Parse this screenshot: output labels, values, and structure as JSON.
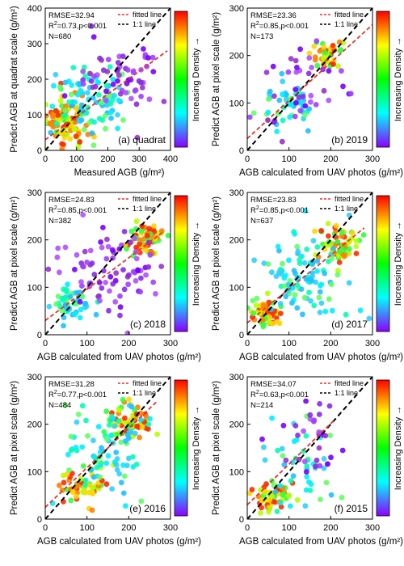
{
  "chart_data": [
    {
      "type": "scatter",
      "panel_label": "(a) quadrat",
      "stats": {
        "rmse": "RMSE=32.94",
        "r2_prefix": "R",
        "r2_rest": "=0.73,p<0.001",
        "n": "N=680"
      },
      "legend": {
        "fitted": "fitted line",
        "one_to_one": "1:1 line"
      },
      "colorbar_label": "Increasing Density →",
      "xlabel": "Measured AGB (g/m²)",
      "ylabel": "Predict AGB at quadrat scale (g/m²)",
      "xlim": [
        0,
        400
      ],
      "ylim": [
        0,
        400
      ],
      "xticks": [
        0,
        100,
        200,
        300,
        400
      ],
      "yticks": [
        0,
        100,
        200,
        300,
        400
      ],
      "fit": [
        [
          0,
          30
        ],
        [
          390,
          280
        ]
      ],
      "clusters": [
        {
          "cx": 60,
          "cy": 80,
          "sx": 35,
          "sy": 35,
          "n": 110,
          "seed": 1,
          "d": "high"
        },
        {
          "cx": 150,
          "cy": 140,
          "sx": 60,
          "sy": 50,
          "n": 90,
          "seed": 2,
          "d": "mid"
        },
        {
          "cx": 250,
          "cy": 200,
          "sx": 70,
          "sy": 55,
          "n": 60,
          "seed": 3,
          "d": "low"
        }
      ]
    },
    {
      "type": "scatter",
      "panel_label": "(b) 2019",
      "stats": {
        "rmse": "RMSE=23.36",
        "r2_prefix": "R",
        "r2_rest": "=0.85,p<0.001",
        "n": "N=173"
      },
      "legend": {
        "fitted": "fitted line",
        "one_to_one": "1:1 line"
      },
      "colorbar_label": "Increasing Density →",
      "xlabel": "AGB calculated from UAV photos (g/m²)",
      "ylabel": "Predict AGB at pixel scale (g/m²)",
      "xlim": [
        0,
        300
      ],
      "ylim": [
        0,
        300
      ],
      "xticks": [
        0,
        100,
        200,
        300
      ],
      "yticks": [
        0,
        100,
        200,
        300
      ],
      "fit": [
        [
          0,
          25
        ],
        [
          300,
          265
        ]
      ],
      "clusters": [
        {
          "cx": 190,
          "cy": 200,
          "sx": 18,
          "sy": 16,
          "n": 45,
          "seed": 11,
          "d": "high"
        },
        {
          "cx": 90,
          "cy": 100,
          "sx": 30,
          "sy": 25,
          "n": 50,
          "seed": 12,
          "d": "mid"
        },
        {
          "cx": 140,
          "cy": 140,
          "sx": 60,
          "sy": 50,
          "n": 40,
          "seed": 13,
          "d": "low"
        }
      ]
    },
    {
      "type": "scatter",
      "panel_label": "(c) 2018",
      "stats": {
        "rmse": "RMSE=24.83",
        "r2_prefix": "R",
        "r2_rest": "=0.85,p<0.001",
        "n": "N=382"
      },
      "legend": {
        "fitted": "fitted line",
        "one_to_one": "1:1 line"
      },
      "colorbar_label": "Increasing Density →",
      "xlabel": "AGB calculated from UAV photos (g/m²)",
      "ylabel": "Predict AGB at pixel scale (g/m²)",
      "xlim": [
        0,
        300
      ],
      "ylim": [
        0,
        300
      ],
      "xticks": [
        0,
        100,
        200,
        300
      ],
      "yticks": [
        0,
        100,
        200,
        300
      ],
      "fit": [
        [
          0,
          30
        ],
        [
          280,
          215
        ]
      ],
      "clusters": [
        {
          "cx": 240,
          "cy": 200,
          "sx": 22,
          "sy": 18,
          "n": 60,
          "seed": 21,
          "d": "high"
        },
        {
          "cx": 60,
          "cy": 65,
          "sx": 25,
          "sy": 20,
          "n": 55,
          "seed": 22,
          "d": "mid"
        },
        {
          "cx": 150,
          "cy": 140,
          "sx": 60,
          "sy": 45,
          "n": 80,
          "seed": 23,
          "d": "low"
        }
      ]
    },
    {
      "type": "scatter",
      "panel_label": "(d) 2017",
      "stats": {
        "rmse": "RMSE=23.83",
        "r2_prefix": "R",
        "r2_rest": "=0.85,p<0.001",
        "n": "N=637"
      },
      "legend": {
        "fitted": "fitted line",
        "one_to_one": "1:1 line"
      },
      "colorbar_label": "Increasing Density →",
      "xlabel": "AGB calculated from UAV photos (g/m²)",
      "ylabel": "Predict AGB at pixel scale (g/m²)",
      "xlim": [
        0,
        300
      ],
      "ylim": [
        0,
        300
      ],
      "xticks": [
        0,
        100,
        200,
        300
      ],
      "yticks": [
        0,
        100,
        200,
        300
      ],
      "fit": [
        [
          0,
          25
        ],
        [
          280,
          225
        ]
      ],
      "clusters": [
        {
          "cx": 220,
          "cy": 190,
          "sx": 25,
          "sy": 20,
          "n": 70,
          "seed": 31,
          "d": "high"
        },
        {
          "cx": 40,
          "cy": 45,
          "sx": 18,
          "sy": 15,
          "n": 60,
          "seed": 32,
          "d": "high"
        },
        {
          "cx": 130,
          "cy": 120,
          "sx": 55,
          "sy": 45,
          "n": 100,
          "seed": 33,
          "d": "mid"
        }
      ]
    },
    {
      "type": "scatter",
      "panel_label": "(e) 2016",
      "stats": {
        "rmse": "RMSE=31.28",
        "r2_prefix": "R",
        "r2_rest": "=0.77,p<0.001",
        "n": "N=484"
      },
      "legend": {
        "fitted": "fitted line",
        "one_to_one": "1:1 line"
      },
      "colorbar_label": "Increasing Density →",
      "xlabel": "AGB calculated from UAV photos (g/m²)",
      "ylabel": "Predict AGB at pixel scale (g/m²)",
      "xlim": [
        0,
        300
      ],
      "ylim": [
        0,
        300
      ],
      "xticks": [
        0,
        100,
        200,
        300
      ],
      "yticks": [
        0,
        100,
        200,
        300
      ],
      "fit": [
        [
          0,
          25
        ],
        [
          270,
          250
        ]
      ],
      "clusters": [
        {
          "cx": 200,
          "cy": 205,
          "sx": 25,
          "sy": 18,
          "n": 70,
          "seed": 41,
          "d": "high"
        },
        {
          "cx": 90,
          "cy": 70,
          "sx": 25,
          "sy": 18,
          "n": 60,
          "seed": 42,
          "d": "high"
        },
        {
          "cx": 140,
          "cy": 140,
          "sx": 55,
          "sy": 50,
          "n": 80,
          "seed": 43,
          "d": "mid"
        }
      ]
    },
    {
      "type": "scatter",
      "panel_label": "(f) 2015",
      "stats": {
        "rmse": "RMSE=34.07",
        "r2_prefix": "R",
        "r2_rest": "=0.63,p<0.001",
        "n": "N=214"
      },
      "legend": {
        "fitted": "fitted line",
        "one_to_one": "1:1 line"
      },
      "colorbar_label": "Increasing Density →",
      "xlabel": "AGB calculated from UAV photos (g/m²)",
      "ylabel": "Predict AGB at pixel scale (g/m²)",
      "xlim": [
        0,
        300
      ],
      "ylim": [
        0,
        300
      ],
      "xticks": [
        0,
        100,
        200,
        300
      ],
      "yticks": [
        0,
        100,
        200,
        300
      ],
      "fit": [
        [
          0,
          30
        ],
        [
          210,
          210
        ]
      ],
      "clusters": [
        {
          "cx": 60,
          "cy": 50,
          "sx": 25,
          "sy": 15,
          "n": 55,
          "seed": 51,
          "d": "high"
        },
        {
          "cx": 130,
          "cy": 110,
          "sx": 40,
          "sy": 45,
          "n": 45,
          "seed": 52,
          "d": "mid"
        },
        {
          "cx": 160,
          "cy": 170,
          "sx": 35,
          "sy": 40,
          "n": 30,
          "seed": 53,
          "d": "low"
        }
      ]
    }
  ],
  "colors": {
    "fitted_line": "#e8332a",
    "one_to_one": "#000000",
    "gradient": [
      "#ff0000",
      "#ffff00",
      "#00ff00",
      "#00ffff",
      "#8b00ff"
    ]
  }
}
